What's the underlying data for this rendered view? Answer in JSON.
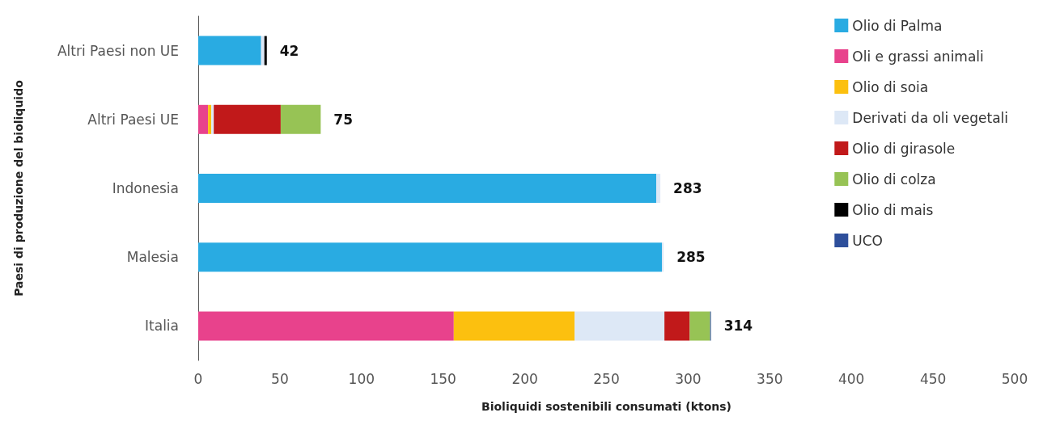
{
  "chart_data": {
    "type": "bar",
    "orientation": "horizontal",
    "stacked": true,
    "xlabel": "Bioliquidi sostenibili consumati (ktons)",
    "ylabel": "Paesi di produzione del bioliquido",
    "categories": [
      "Altri Paesi non UE",
      "Altri Paesi UE",
      "Indonesia",
      "Malesia",
      "Italia"
    ],
    "series": [
      {
        "name": "Olio di Palma",
        "color": "#29abe2",
        "values": [
          38.5,
          null,
          280.5,
          284,
          null
        ]
      },
      {
        "name": "Oli e grassi animali",
        "color": "#e8428c",
        "values": [
          null,
          6,
          null,
          null,
          156.5
        ]
      },
      {
        "name": "Olio di soia",
        "color": "#fcc00f",
        "values": [
          null,
          2,
          null,
          null,
          74
        ]
      },
      {
        "name": "Derivati da oli vegetali",
        "color": "#dde8f6",
        "values": [
          2,
          1.5,
          2.5,
          1,
          55
        ]
      },
      {
        "name": "Olio di girasole",
        "color": "#c1191a",
        "values": [
          null,
          41,
          null,
          null,
          15.5
        ]
      },
      {
        "name": "Olio di colza",
        "color": "#97c355",
        "values": [
          null,
          24.5,
          null,
          null,
          12.5
        ]
      },
      {
        "name": "Olio di mais",
        "color": "#000000",
        "values": [
          1.5,
          null,
          null,
          null,
          null
        ]
      },
      {
        "name": "UCO",
        "color": "#2e4f9b",
        "values": [
          null,
          null,
          null,
          null,
          0.5
        ]
      }
    ],
    "totals": [
      "42",
      "75",
      "283",
      "285",
      "314"
    ],
    "xlim": [
      0,
      500
    ],
    "xticks": [
      0,
      50,
      100,
      150,
      200,
      250,
      300,
      350,
      400,
      450,
      500
    ],
    "grid": false,
    "legend": "top right"
  }
}
